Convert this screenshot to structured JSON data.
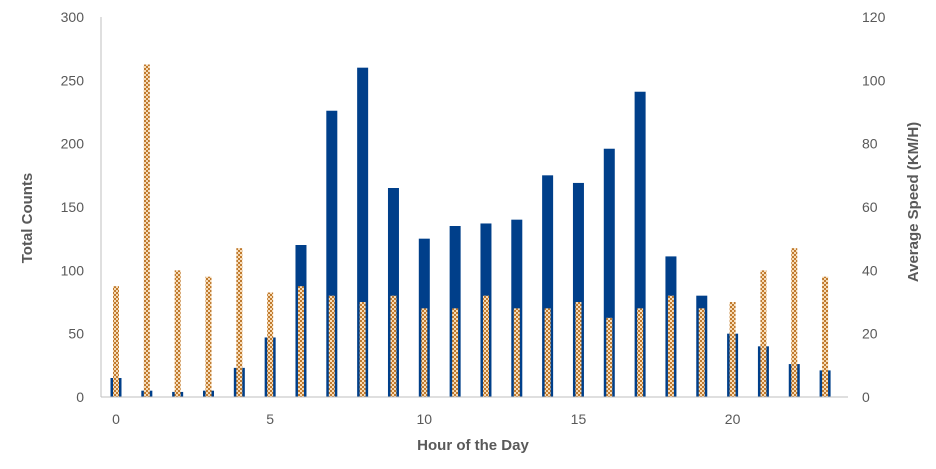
{
  "chart_data": {
    "type": "bar",
    "title": "",
    "xlabel": "Hour of the Day",
    "ylabel": "Total Counts",
    "y2label": "Average Speed (KM/H)",
    "x": [
      0,
      1,
      2,
      3,
      4,
      5,
      6,
      7,
      8,
      9,
      10,
      11,
      12,
      13,
      14,
      15,
      16,
      17,
      18,
      19,
      20,
      21,
      22,
      23
    ],
    "xticks": [
      0,
      5,
      10,
      15,
      20
    ],
    "ylim": [
      0,
      300
    ],
    "yticks": [
      0,
      50,
      100,
      150,
      200,
      250,
      300
    ],
    "y2lim": [
      0,
      120
    ],
    "y2ticks": [
      0,
      20,
      40,
      60,
      80,
      100,
      120
    ],
    "grid": false,
    "legend": "none",
    "series": [
      {
        "axis": "left",
        "color": "#003f8a",
        "values": [
          15,
          5,
          4,
          5,
          23,
          47,
          120,
          226,
          260,
          165,
          125,
          135,
          137,
          140,
          175,
          169,
          196,
          241,
          111,
          80,
          50,
          40,
          26,
          21
        ]
      },
      {
        "axis": "right",
        "color": "#d08a3c",
        "values": [
          35,
          105,
          40,
          38,
          47,
          33,
          35,
          32,
          30,
          32,
          28,
          28,
          32,
          28,
          28,
          30,
          25,
          28,
          32,
          28,
          30,
          40,
          47,
          38
        ]
      }
    ]
  }
}
